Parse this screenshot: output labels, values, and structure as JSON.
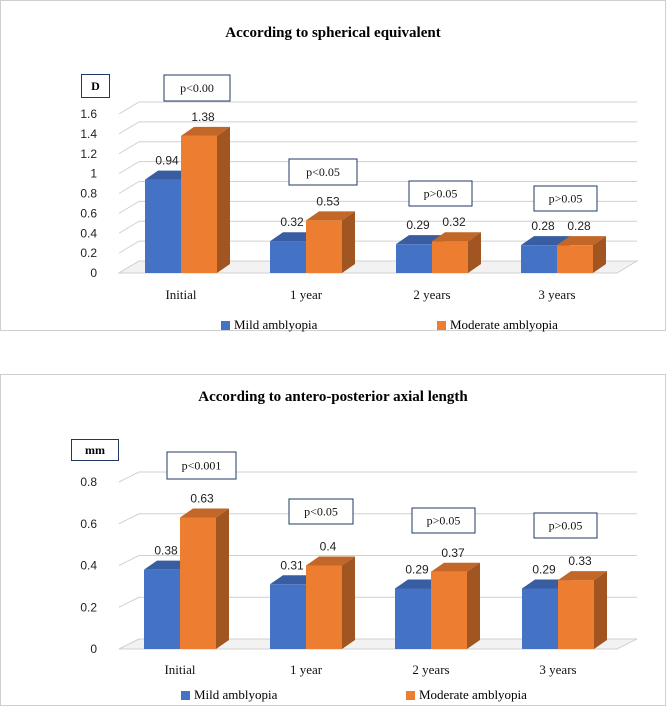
{
  "colors": {
    "mild": "#4472c4",
    "moderate": "#ed7d31",
    "pbox_border": "#1f3864"
  },
  "chart_data": [
    {
      "type": "bar",
      "title": "According to spherical equivalent",
      "unit_label": "D",
      "categories": [
        "Initial",
        "1 year",
        "2 years",
        "3 years"
      ],
      "series": [
        {
          "name": "Mild amblyopia",
          "values": [
            0.94,
            0.32,
            0.29,
            0.28
          ],
          "labels": [
            "0.94",
            "0.32",
            "0.29",
            "0.28"
          ]
        },
        {
          "name": "Moderate amblyopia",
          "values": [
            1.38,
            0.53,
            0.32,
            0.28
          ],
          "labels": [
            "1.38",
            "0.53",
            "0.32",
            "0.28"
          ]
        }
      ],
      "annotations": [
        "p<0.00",
        "p<0.05",
        "p>0.05",
        "p>0.05"
      ],
      "ylim": [
        0,
        1.6
      ],
      "yticks": [
        "0",
        "0.2",
        "0.4",
        "0.6",
        "0.8",
        "1",
        "1.2",
        "1.4",
        "1.6"
      ],
      "grid": true,
      "legend_position": "bottom"
    },
    {
      "type": "bar",
      "title": "According to antero-posterior axial length",
      "unit_label": "mm",
      "categories": [
        "Initial",
        "1 year",
        "2 years",
        "3 years"
      ],
      "series": [
        {
          "name": "Mild amblyopia",
          "values": [
            0.38,
            0.31,
            0.29,
            0.29
          ],
          "labels": [
            "0.38",
            "0.31",
            "0.29",
            "0.29"
          ]
        },
        {
          "name": "Moderate amblyopia",
          "values": [
            0.63,
            0.4,
            0.37,
            0.33
          ],
          "labels": [
            "0.63",
            "0.4",
            "0.37",
            "0.33"
          ]
        }
      ],
      "annotations": [
        "p<0.001",
        "p<0.05",
        "p>0.05",
        "p>0.05"
      ],
      "ylim": [
        0,
        0.8
      ],
      "yticks": [
        "0",
        "0.2",
        "0.4",
        "0.6",
        "0.8"
      ],
      "grid": true,
      "legend_position": "bottom"
    }
  ]
}
